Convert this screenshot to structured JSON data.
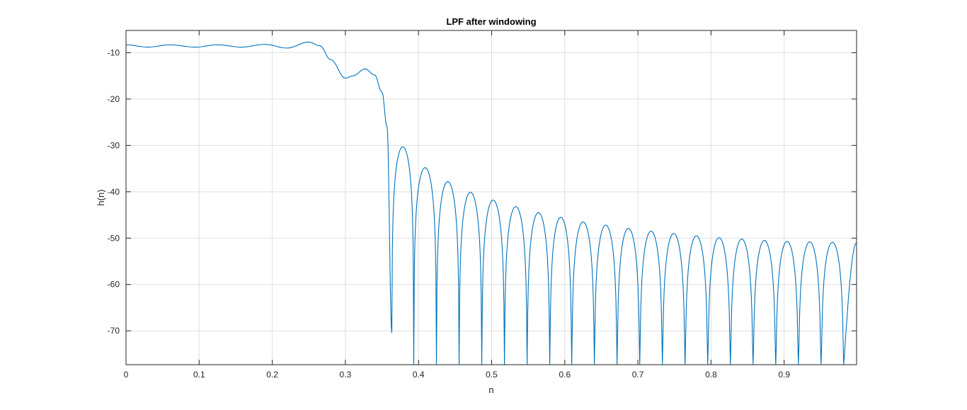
{
  "chart_data": {
    "type": "line",
    "title": "LPF after windowing",
    "xlabel": "n",
    "ylabel": "h(n)",
    "xlim": [
      0,
      0.9990234375
    ],
    "ylim": [
      -77.3,
      -5.2
    ],
    "grid": true,
    "x_ticks": [
      0,
      0.1,
      0.2,
      0.3,
      0.4,
      0.5,
      0.6,
      0.7,
      0.8,
      0.9
    ],
    "x_tick_labels": [
      "0",
      "0.1",
      "0.2",
      "0.3",
      "0.4",
      "0.5",
      "0.6",
      "0.7",
      "0.8",
      "0.9"
    ],
    "y_ticks": [
      -10,
      -20,
      -30,
      -40,
      -50,
      -60,
      -70
    ],
    "y_tick_labels": [
      "-10",
      "-20",
      "-30",
      "-40",
      "-50",
      "-60",
      "-70"
    ],
    "line_color": "#0072BD",
    "series": [
      {
        "passband": [
          [
            0,
            -8.3
          ],
          [
            0.03,
            -8.8
          ],
          [
            0.06,
            -8.3
          ],
          [
            0.095,
            -8.8
          ],
          [
            0.125,
            -8.3
          ],
          [
            0.158,
            -8.8
          ],
          [
            0.19,
            -8.2
          ],
          [
            0.22,
            -9.0
          ],
          [
            0.25,
            -7.7
          ],
          [
            0.265,
            -8.5
          ],
          [
            0.28,
            -11.5
          ],
          [
            0.3,
            -15.5
          ],
          [
            0.31,
            -15.0
          ],
          [
            0.327,
            -13.5
          ],
          [
            0.34,
            -14.8
          ],
          [
            0.35,
            -18.5
          ],
          [
            0.357,
            -26.0
          ],
          [
            0.3635,
            -70.4
          ]
        ],
        "stopband": {
          "nulls": [
            0.3635,
            0.3935,
            0.4245,
            0.4555,
            0.4865,
            0.5175,
            0.5485,
            0.5795,
            0.6095,
            0.6405,
            0.6715,
            0.7025,
            0.7335,
            0.7645,
            0.7955,
            0.8265,
            0.8575,
            0.8885,
            0.9195,
            0.9505,
            0.9815
          ],
          "lobe_peaks": [
            -30.3,
            -34.8,
            -37.8,
            -40.1,
            -41.8,
            -43.2,
            -44.5,
            -45.5,
            -46.5,
            -47.2,
            -47.9,
            -48.5,
            -49.0,
            -49.5,
            -49.9,
            -50.2,
            -50.5,
            -50.7,
            -50.8,
            -50.9
          ],
          "last_point": [
            0.999,
            -51.0
          ],
          "null_floor": -77.3
        }
      }
    ]
  }
}
